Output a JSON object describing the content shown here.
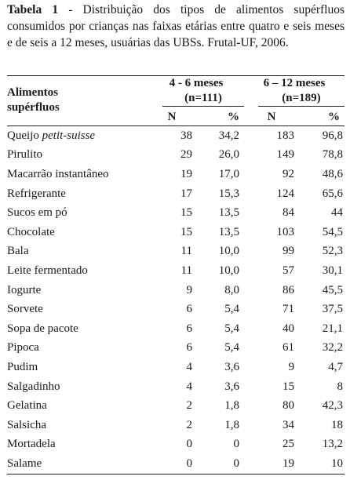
{
  "caption": {
    "label": "Tabela 1",
    "text": " - Distribuição dos tipos de alimentos supérfluos consumidos por crianças nas faixas etárias entre quatro e seis meses e de seis a 12 meses, usuárias das UBSs. Frutal-UF, 2006."
  },
  "table": {
    "food_header_line1": "Alimentos",
    "food_header_line2": "supérfluos",
    "group1_title": "4 - 6 meses",
    "group1_n": "(n=111)",
    "group2_title": "6 – 12 meses",
    "group2_n": "(n=189)",
    "col_n": "N",
    "col_pct": "%",
    "rows": [
      {
        "food_prefix": "Queijo ",
        "food_italic": "petit-suisse",
        "n1": "38",
        "p1": "34,2",
        "n2": "183",
        "p2": "96,8"
      },
      {
        "food_prefix": "Pirulito",
        "food_italic": "",
        "n1": "29",
        "p1": "26,0",
        "n2": "149",
        "p2": "78,8"
      },
      {
        "food_prefix": "Macarrão instantâneo",
        "food_italic": "",
        "n1": "19",
        "p1": "17,0",
        "n2": "92",
        "p2": "48,6"
      },
      {
        "food_prefix": "Refrigerante",
        "food_italic": "",
        "n1": "17",
        "p1": "15,3",
        "n2": "124",
        "p2": "65,6"
      },
      {
        "food_prefix": "Sucos em pó",
        "food_italic": "",
        "n1": "15",
        "p1": "13,5",
        "n2": "84",
        "p2": "44"
      },
      {
        "food_prefix": "Chocolate",
        "food_italic": "",
        "n1": "15",
        "p1": "13,5",
        "n2": "103",
        "p2": "54,5"
      },
      {
        "food_prefix": "Bala",
        "food_italic": "",
        "n1": "11",
        "p1": "10,0",
        "n2": "99",
        "p2": "52,3"
      },
      {
        "food_prefix": "Leite fermentado",
        "food_italic": "",
        "n1": "11",
        "p1": "10,0",
        "n2": "57",
        "p2": "30,1"
      },
      {
        "food_prefix": "Iogurte",
        "food_italic": "",
        "n1": "9",
        "p1": "8,0",
        "n2": "86",
        "p2": "45,5"
      },
      {
        "food_prefix": "Sorvete",
        "food_italic": "",
        "n1": "6",
        "p1": "5,4",
        "n2": "71",
        "p2": "37,5"
      },
      {
        "food_prefix": "Sopa de pacote",
        "food_italic": "",
        "n1": "6",
        "p1": "5,4",
        "n2": "40",
        "p2": "21,1"
      },
      {
        "food_prefix": "Pipoca",
        "food_italic": "",
        "n1": "6",
        "p1": "5,4",
        "n2": "61",
        "p2": "32,2"
      },
      {
        "food_prefix": "Pudim",
        "food_italic": "",
        "n1": "4",
        "p1": "3,6",
        "n2": "9",
        "p2": "4,7"
      },
      {
        "food_prefix": "Salgadinho",
        "food_italic": "",
        "n1": "4",
        "p1": "3,6",
        "n2": "15",
        "p2": "8"
      },
      {
        "food_prefix": "Gelatina",
        "food_italic": "",
        "n1": "2",
        "p1": "1,8",
        "n2": "80",
        "p2": "42,3"
      },
      {
        "food_prefix": "Salsicha",
        "food_italic": "",
        "n1": "2",
        "p1": "1,8",
        "n2": "34",
        "p2": "18"
      },
      {
        "food_prefix": "Mortadela",
        "food_italic": "",
        "n1": "0",
        "p1": "0",
        "n2": "25",
        "p2": "13,2"
      },
      {
        "food_prefix": "Salame",
        "food_italic": "",
        "n1": "0",
        "p1": "0",
        "n2": "19",
        "p2": "10"
      }
    ]
  }
}
